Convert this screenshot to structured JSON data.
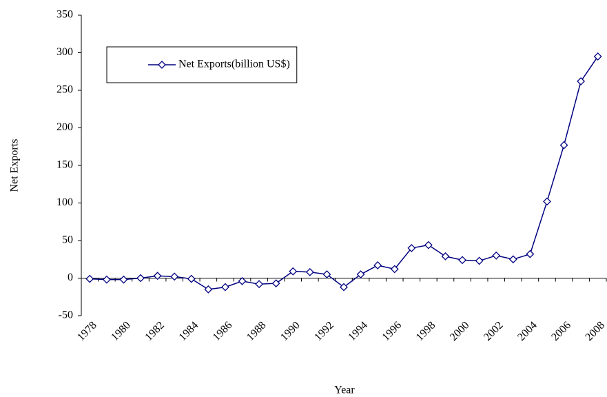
{
  "chart_data": {
    "type": "line",
    "x_label": "Year",
    "y_label": "Net Exports",
    "categories": [
      "1978",
      null,
      "1980",
      null,
      "1982",
      null,
      "1984",
      null,
      "1986",
      null,
      "1988",
      null,
      "1990",
      null,
      "1992",
      null,
      "1994",
      null,
      "1996",
      null,
      "1998",
      null,
      "2000",
      null,
      "2002",
      null,
      "2004",
      null,
      "2006",
      null,
      "2008"
    ],
    "series": [
      {
        "name": "Net Exports(billion US$)",
        "color": "#000080",
        "values": [
          -1,
          -2,
          -2,
          0,
          3,
          2,
          -1,
          -15,
          -12,
          -4,
          -8,
          -7,
          9,
          8,
          5,
          -12,
          5,
          17,
          12,
          40,
          44,
          29,
          24,
          23,
          30,
          25,
          32,
          102,
          177,
          262,
          295
        ]
      }
    ],
    "ylim": [
      -50,
      350
    ],
    "yticks": [
      -50,
      0,
      50,
      100,
      150,
      200,
      250,
      300,
      350
    ],
    "grid": false,
    "legend": "upper left"
  }
}
